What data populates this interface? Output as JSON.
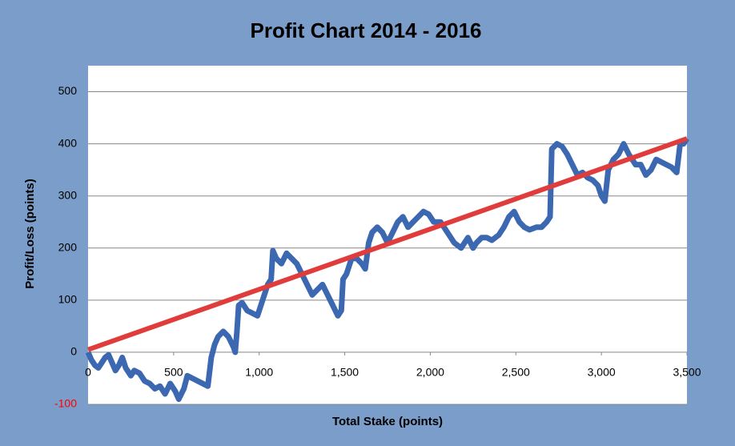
{
  "chart_data": {
    "type": "line",
    "title": "Profit Chart 2014 - 2016",
    "x_label": "Total Stake (points)",
    "y_label": "Profit/Loss (points)",
    "xlim": [
      0,
      3500
    ],
    "ylim": [
      -100,
      550
    ],
    "xticks": [
      0,
      500,
      {
        "value": 1000,
        "label": "1,000"
      },
      {
        "value": 1500,
        "label": "1,500"
      },
      {
        "value": 2000,
        "label": "2,000"
      },
      {
        "value": 2500,
        "label": "2,500"
      },
      {
        "value": 3000,
        "label": "3,000"
      },
      {
        "value": 3500,
        "label": "3,500"
      }
    ],
    "yticks": [
      -100,
      0,
      100,
      200,
      300,
      400,
      500
    ],
    "negative_tick_color": "#ff0000",
    "grid": true,
    "background": "#7b9dc9",
    "series": [
      {
        "color": "#3c67b1",
        "x": [
          0,
          20,
          40,
          60,
          80,
          100,
          120,
          140,
          160,
          180,
          200,
          220,
          250,
          270,
          300,
          330,
          360,
          390,
          420,
          450,
          480,
          510,
          530,
          560,
          580,
          610,
          640,
          670,
          700,
          720,
          740,
          760,
          790,
          820,
          850,
          860,
          870,
          880,
          900,
          930,
          960,
          990,
          1020,
          1050,
          1070,
          1080,
          1100,
          1130,
          1160,
          1190,
          1220,
          1250,
          1280,
          1310,
          1340,
          1370,
          1400,
          1430,
          1460,
          1480,
          1490,
          1510,
          1540,
          1570,
          1600,
          1620,
          1640,
          1660,
          1690,
          1720,
          1750,
          1780,
          1810,
          1840,
          1870,
          1900,
          1930,
          1960,
          1990,
          2020,
          2060,
          2100,
          2140,
          2180,
          2220,
          2250,
          2270,
          2300,
          2330,
          2360,
          2400,
          2430,
          2460,
          2490,
          2520,
          2550,
          2580,
          2620,
          2650,
          2680,
          2700,
          2710,
          2740,
          2770,
          2800,
          2830,
          2860,
          2890,
          2920,
          2950,
          2980,
          3000,
          3020,
          3040,
          3070,
          3100,
          3130,
          3160,
          3200,
          3230,
          3260,
          3290,
          3320,
          3350,
          3380,
          3410,
          3440,
          3460,
          3480,
          3500
        ],
        "values": [
          0,
          -15,
          -25,
          -30,
          -20,
          -10,
          -5,
          -20,
          -35,
          -25,
          -10,
          -30,
          -45,
          -35,
          -40,
          -55,
          -60,
          -70,
          -65,
          -80,
          -60,
          -75,
          -90,
          -70,
          -45,
          -50,
          -55,
          -60,
          -65,
          -10,
          15,
          30,
          40,
          30,
          10,
          0,
          40,
          90,
          95,
          80,
          75,
          70,
          100,
          130,
          140,
          195,
          180,
          170,
          190,
          180,
          170,
          150,
          130,
          110,
          120,
          130,
          110,
          90,
          70,
          80,
          140,
          150,
          180,
          180,
          170,
          160,
          210,
          230,
          240,
          230,
          210,
          230,
          250,
          260,
          240,
          250,
          260,
          270,
          265,
          250,
          250,
          230,
          210,
          200,
          220,
          200,
          210,
          220,
          220,
          215,
          225,
          240,
          260,
          270,
          250,
          240,
          235,
          240,
          240,
          250,
          260,
          390,
          400,
          395,
          380,
          360,
          340,
          345,
          335,
          330,
          320,
          300,
          290,
          350,
          370,
          380,
          400,
          380,
          360,
          360,
          340,
          350,
          370,
          365,
          360,
          355,
          345,
          400,
          400,
          410
        ]
      },
      {
        "color": "#e03c3c",
        "x": [
          0,
          3500
        ],
        "values": [
          5,
          410
        ]
      }
    ]
  }
}
